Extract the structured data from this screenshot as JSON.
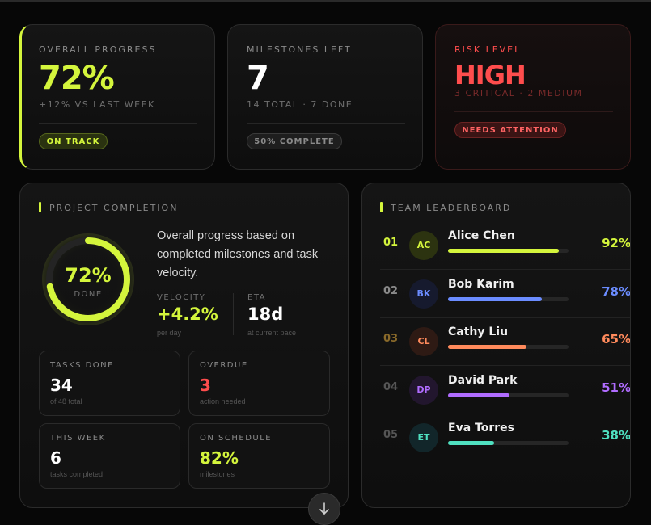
{
  "stats": {
    "progress": {
      "label": "OVERALL PROGRESS",
      "value": "72%",
      "sub": "+12% VS LAST WEEK",
      "badge": "ON TRACK"
    },
    "milestones": {
      "label": "MILESTONES LEFT",
      "value": "7",
      "sub": "14 TOTAL · 7 DONE",
      "badge": "50% COMPLETE"
    },
    "risk": {
      "label": "RISK LEVEL",
      "value": "HIGH",
      "sub": "3 CRITICAL · 2 MEDIUM",
      "badge": "NEEDS ATTENTION"
    }
  },
  "completion": {
    "title": "PROJECT COMPLETION",
    "ring": {
      "value": "72%",
      "label": "DONE",
      "fraction": 0.72
    },
    "description": "Overall progress based on completed milestones and task velocity.",
    "velocity": {
      "label": "VELOCITY",
      "value": "+4.2%",
      "sub": "per day"
    },
    "eta": {
      "label": "ETA",
      "value": "18d",
      "sub": "at current pace"
    },
    "tiles": [
      {
        "title": "TASKS DONE",
        "value": "34",
        "sub": "of 48 total"
      },
      {
        "title": "OVERDUE",
        "value": "3",
        "sub": "action needed"
      },
      {
        "title": "THIS WEEK",
        "value": "6",
        "sub": "tasks completed"
      },
      {
        "title": "ON SCHEDULE",
        "value": "82%",
        "sub": "milestones"
      }
    ]
  },
  "leaderboard": {
    "title": "TEAM LEADERBOARD",
    "rows": [
      {
        "rank": "01",
        "initials": "AC",
        "name": "Alice Chen",
        "pct": "92%",
        "fraction": 0.92,
        "color": "#d4f53c"
      },
      {
        "rank": "02",
        "initials": "BK",
        "name": "Bob Karim",
        "pct": "78%",
        "fraction": 0.78,
        "color": "#6b8cff"
      },
      {
        "rank": "03",
        "initials": "CL",
        "name": "Cathy Liu",
        "pct": "65%",
        "fraction": 0.65,
        "color": "#ff8a5c"
      },
      {
        "rank": "04",
        "initials": "DP",
        "name": "David Park",
        "pct": "51%",
        "fraction": 0.51,
        "color": "#b06cff"
      },
      {
        "rank": "05",
        "initials": "ET",
        "name": "Eva Torres",
        "pct": "38%",
        "fraction": 0.38,
        "color": "#4fe0c0"
      }
    ]
  },
  "colors": {
    "accent": "#d4f53c",
    "danger": "#ff4d4d",
    "background": "#070707"
  },
  "scroll_icon": "arrow-down-icon"
}
